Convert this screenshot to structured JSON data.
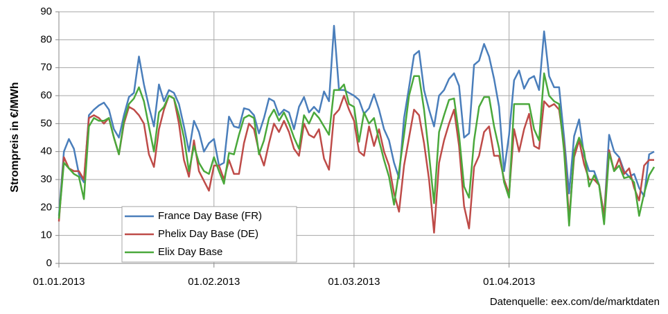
{
  "chart_data": {
    "type": "line",
    "y_label": "Strompreis in €/MWh",
    "source": "Datenquelle: eex.com/de/marktdaten",
    "categories": [
      "01.01.2013",
      null,
      null,
      null,
      null,
      null,
      null,
      null,
      null,
      null,
      null,
      null,
      null,
      null,
      null,
      null,
      null,
      null,
      null,
      null,
      null,
      null,
      null,
      null,
      null,
      null,
      null,
      null,
      null,
      null,
      null,
      "01.02.2013",
      null,
      null,
      null,
      null,
      null,
      null,
      null,
      null,
      null,
      null,
      null,
      null,
      null,
      null,
      null,
      null,
      null,
      null,
      null,
      null,
      null,
      null,
      null,
      null,
      null,
      null,
      null,
      "01.03.2013",
      null,
      null,
      null,
      null,
      null,
      null,
      null,
      null,
      null,
      null,
      null,
      null,
      null,
      null,
      null,
      null,
      null,
      null,
      null,
      null,
      null,
      null,
      null,
      null,
      null,
      null,
      null,
      null,
      null,
      null,
      "01.04.2013",
      null,
      null,
      null,
      null,
      null,
      null,
      null,
      null,
      null,
      null,
      null,
      null,
      null,
      null,
      null,
      null,
      null,
      null,
      null,
      null,
      null,
      null,
      null,
      null,
      null,
      null,
      null,
      null,
      null
    ],
    "series": [
      {
        "name": "France Day Base (FR)",
        "color": "#4a7ebb",
        "values": [
          17,
          40,
          44.5,
          41,
          32,
          29,
          53,
          55,
          56.5,
          57.5,
          55,
          48,
          45,
          53,
          59.5,
          61,
          74,
          64,
          56,
          49,
          64,
          58,
          62,
          61,
          57,
          49,
          40,
          51,
          47,
          40,
          43,
          44.5,
          35,
          36,
          52.5,
          49,
          48.5,
          55.5,
          55,
          53,
          46.5,
          52,
          59,
          58,
          53,
          55,
          54,
          48,
          56,
          59.5,
          54,
          56,
          54,
          61.5,
          58,
          85,
          62,
          62,
          61,
          60,
          58.5,
          53.5,
          55.5,
          60.5,
          55,
          48,
          44,
          36,
          30.5,
          52,
          63,
          74.5,
          76,
          62,
          55,
          49,
          60,
          62,
          66,
          68,
          63.5,
          45,
          46.5,
          71,
          72.5,
          78.5,
          74,
          66,
          56,
          33,
          46,
          65.5,
          69,
          62.5,
          66,
          67,
          62,
          83,
          67,
          63,
          63,
          45,
          25,
          45.5,
          51.5,
          38.5,
          33,
          33,
          28,
          17,
          46,
          40,
          38,
          33,
          31,
          32,
          27,
          24,
          39,
          40
        ]
      },
      {
        "name": "Phelix Day Base (DE)",
        "color": "#be4b48",
        "values": [
          15,
          38,
          34,
          33,
          33,
          30,
          52,
          53,
          52,
          50,
          52,
          45,
          39,
          50,
          56,
          55,
          53,
          50,
          39,
          34.5,
          48,
          55,
          60,
          59,
          50,
          37,
          31,
          44,
          33,
          29.5,
          26,
          35,
          35,
          30,
          37,
          32,
          32,
          43,
          50,
          48,
          40,
          35,
          43,
          50,
          47,
          51,
          47,
          41,
          38.5,
          50,
          46,
          45,
          48,
          37.5,
          33.5,
          53,
          55,
          60,
          55,
          51,
          40,
          38.5,
          49,
          42,
          48,
          40,
          35,
          25,
          18.5,
          35,
          45,
          55,
          53,
          43,
          30,
          11,
          36,
          44,
          50,
          55,
          42,
          20.5,
          12.5,
          34.5,
          38.5,
          47,
          49,
          38.5,
          38.5,
          30,
          25,
          48,
          40,
          48,
          53.5,
          42,
          41,
          58,
          56,
          57,
          55,
          42,
          16,
          38,
          44,
          35.5,
          30,
          30,
          28,
          17,
          40.5,
          33,
          37.5,
          32,
          34,
          27,
          22.5,
          35,
          37,
          37
        ]
      },
      {
        "name": "Elix Day Base",
        "color": "#4aa83b",
        "values": [
          16,
          36,
          34,
          32,
          31,
          23,
          49,
          52,
          51,
          51,
          52,
          45,
          39,
          51,
          57,
          59,
          63,
          58,
          49,
          40,
          54,
          56,
          60,
          59,
          53,
          45,
          33,
          42,
          36,
          33,
          32,
          38,
          33,
          28.5,
          39.5,
          39,
          46,
          52,
          53,
          52,
          39,
          44,
          52,
          55,
          51,
          54,
          50,
          45,
          41,
          53,
          50,
          54,
          52,
          49,
          46,
          62,
          62,
          64,
          57,
          56,
          43.5,
          54,
          50,
          52,
          44,
          37,
          31,
          21,
          33,
          46,
          60,
          67,
          67,
          55,
          39,
          21.5,
          47,
          53,
          58.5,
          59,
          46,
          27.5,
          23.5,
          44,
          56,
          59.5,
          59.5,
          49,
          41,
          29,
          23.5,
          57,
          57,
          57,
          57,
          48,
          44,
          68,
          60,
          58,
          57,
          40,
          13.5,
          40,
          45,
          40,
          27.5,
          31.5,
          28,
          14,
          39.5,
          33,
          35,
          30.5,
          31,
          29,
          17,
          25,
          31.5,
          34.5
        ]
      }
    ],
    "ylim": [
      0,
      90
    ],
    "yticks": [
      0,
      10,
      20,
      30,
      40,
      50,
      60,
      70,
      80,
      90
    ],
    "grid": true,
    "legend": "lower left"
  }
}
